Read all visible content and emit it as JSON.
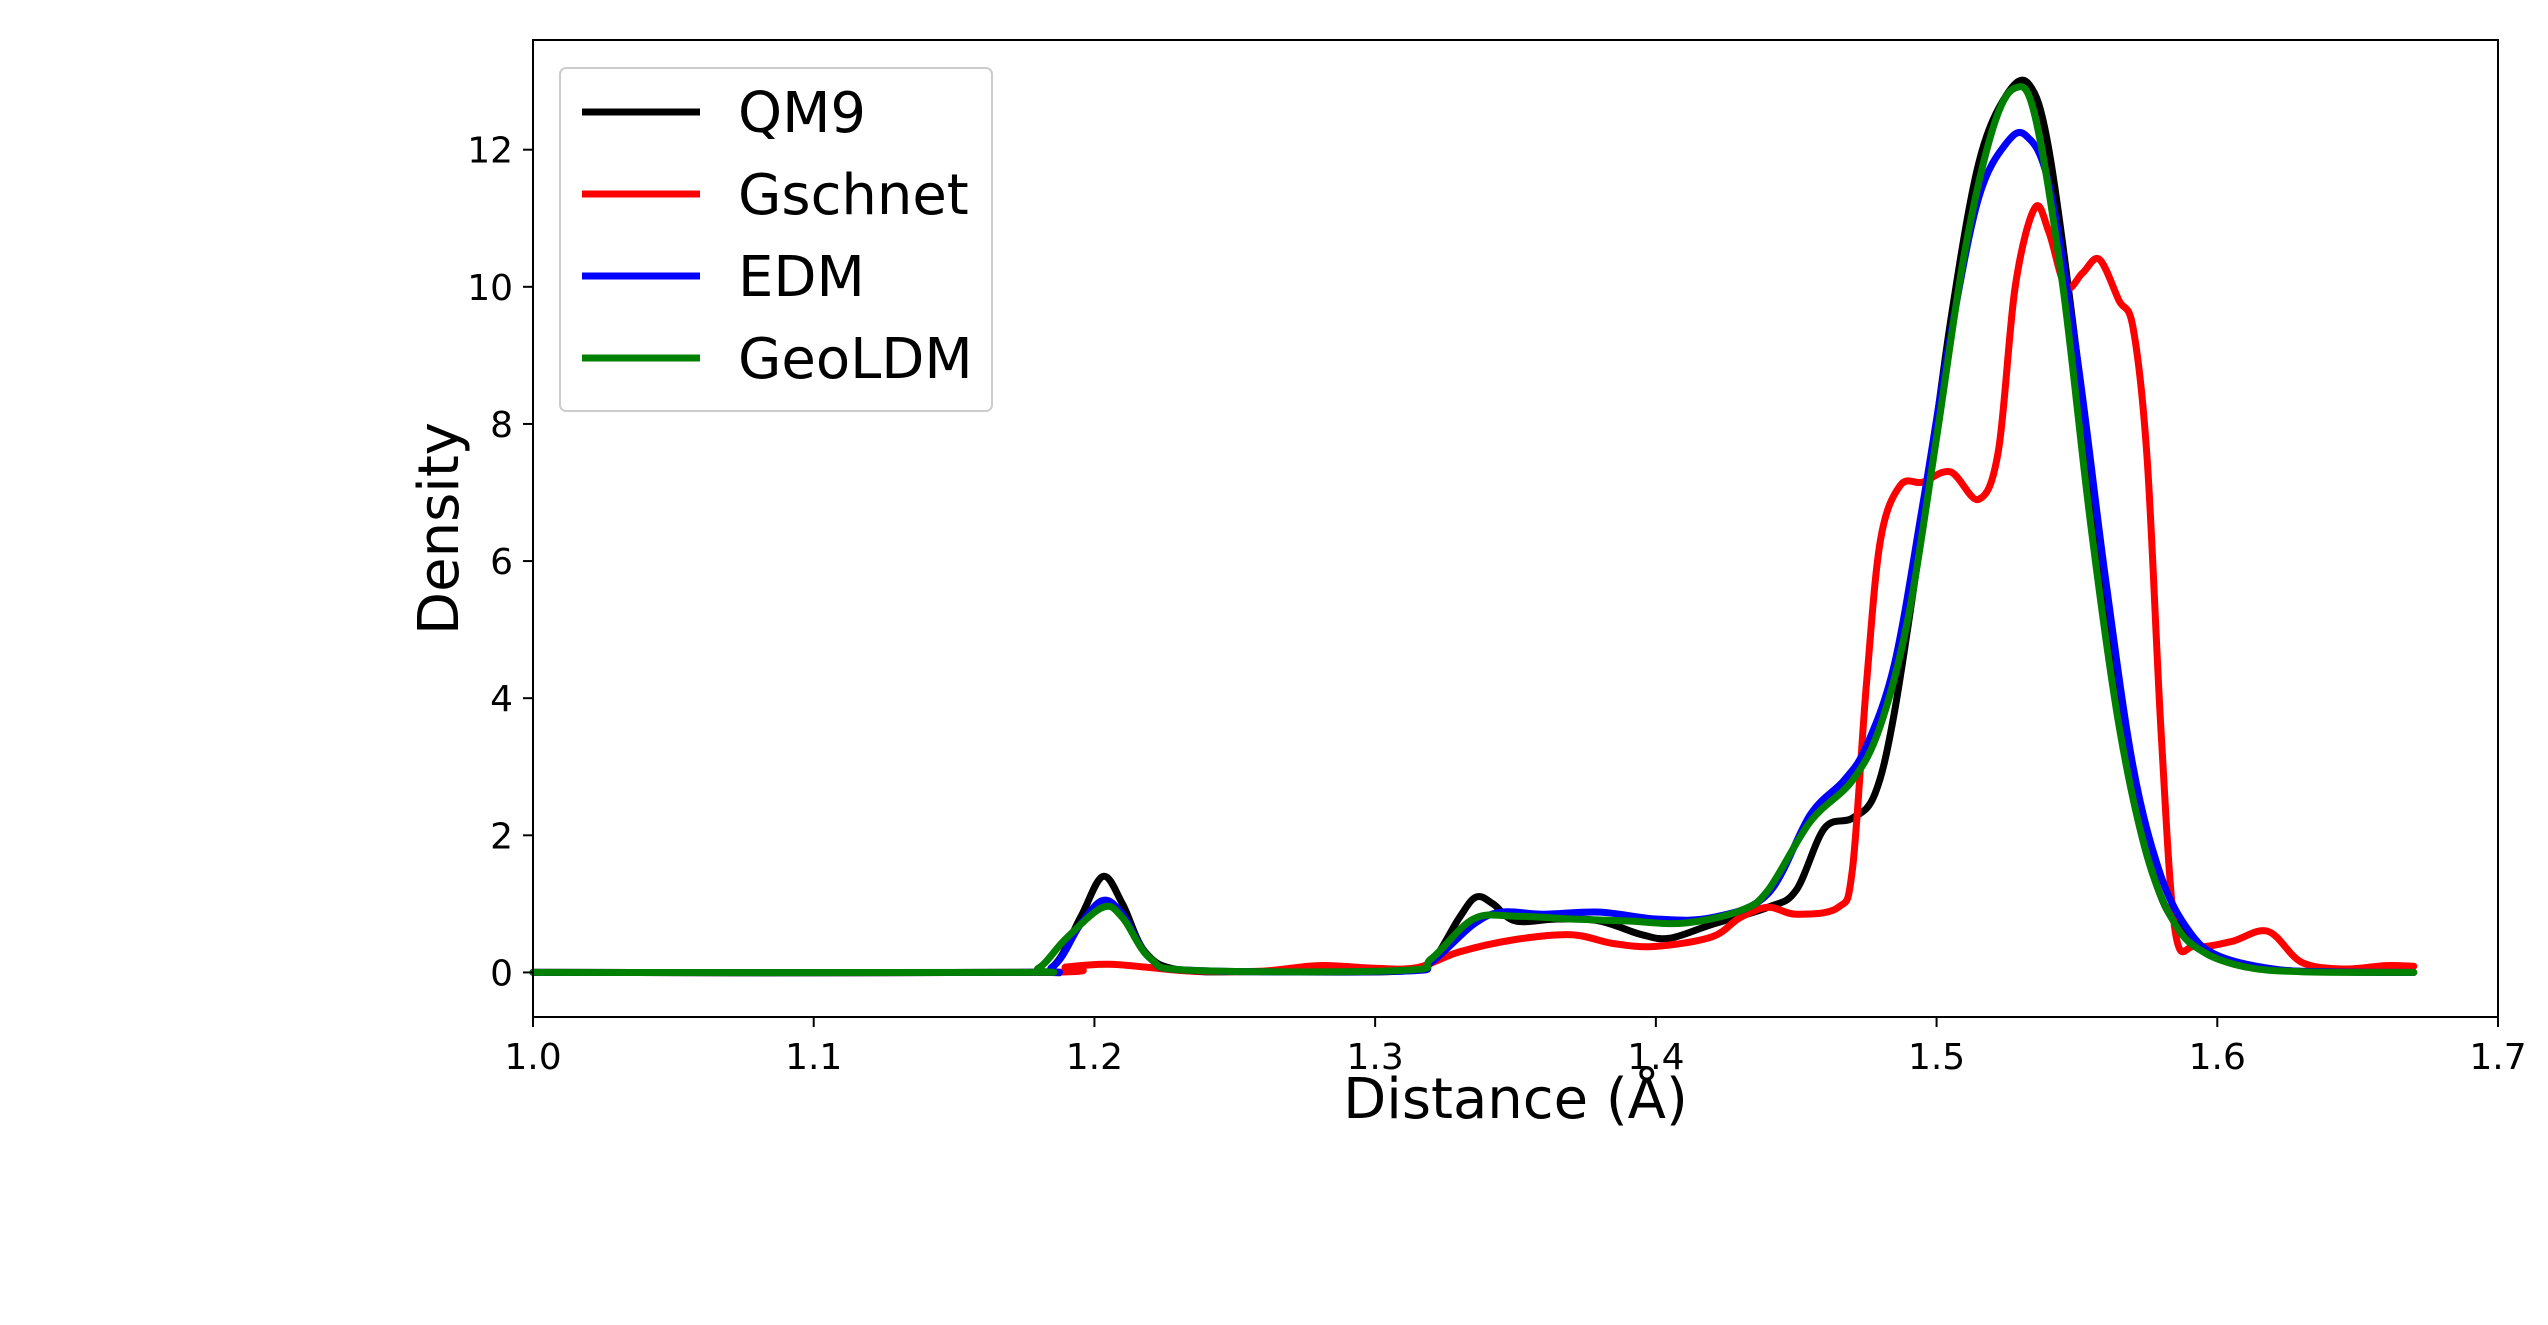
{
  "chart_data": {
    "type": "line",
    "title": "",
    "xlabel": "Distance (Å)",
    "ylabel": "Density",
    "xlim": [
      1.0,
      1.7
    ],
    "ylim": [
      -0.65,
      13.6
    ],
    "xticks": [
      "1.0",
      "1.1",
      "1.2",
      "1.3",
      "1.4",
      "1.5",
      "1.6",
      "1.7"
    ],
    "xtick_values": [
      1.0,
      1.1,
      1.2,
      1.3,
      1.4,
      1.5,
      1.6,
      1.7
    ],
    "yticks": [
      "0",
      "2",
      "4",
      "6",
      "8",
      "10",
      "12"
    ],
    "ytick_values": [
      0,
      2,
      4,
      6,
      8,
      10,
      12
    ],
    "grid": false,
    "legend_position": "top-left",
    "series": [
      {
        "name": "QM9",
        "color": "#000000",
        "points": [
          [
            1.0,
            0
          ],
          [
            1.17,
            0
          ],
          [
            1.185,
            0.08
          ],
          [
            1.195,
            0.8
          ],
          [
            1.203,
            1.4
          ],
          [
            1.21,
            1.0
          ],
          [
            1.218,
            0.3
          ],
          [
            1.23,
            0.04
          ],
          [
            1.26,
            0.01
          ],
          [
            1.31,
            0.02
          ],
          [
            1.32,
            0.15
          ],
          [
            1.33,
            0.8
          ],
          [
            1.336,
            1.1
          ],
          [
            1.342,
            1.0
          ],
          [
            1.35,
            0.75
          ],
          [
            1.365,
            0.78
          ],
          [
            1.38,
            0.75
          ],
          [
            1.395,
            0.55
          ],
          [
            1.405,
            0.5
          ],
          [
            1.42,
            0.7
          ],
          [
            1.44,
            0.95
          ],
          [
            1.45,
            1.2
          ],
          [
            1.46,
            2.1
          ],
          [
            1.47,
            2.25
          ],
          [
            1.478,
            2.6
          ],
          [
            1.485,
            3.8
          ],
          [
            1.495,
            6.5
          ],
          [
            1.505,
            9.5
          ],
          [
            1.515,
            11.8
          ],
          [
            1.525,
            12.8
          ],
          [
            1.533,
            12.95
          ],
          [
            1.54,
            12.0
          ],
          [
            1.55,
            9.0
          ],
          [
            1.56,
            5.5
          ],
          [
            1.57,
            2.6
          ],
          [
            1.58,
            1.1
          ],
          [
            1.59,
            0.5
          ],
          [
            1.6,
            0.2
          ],
          [
            1.62,
            0.04
          ],
          [
            1.64,
            0.01
          ],
          [
            1.67,
            0
          ]
        ]
      },
      {
        "name": "Gschnet",
        "color": "#ff0000",
        "points": [
          [
            1.0,
            0
          ],
          [
            1.18,
            0
          ],
          [
            1.19,
            0.08
          ],
          [
            1.205,
            0.12
          ],
          [
            1.22,
            0.07
          ],
          [
            1.235,
            0.02
          ],
          [
            1.26,
            0.02
          ],
          [
            1.28,
            0.1
          ],
          [
            1.3,
            0.06
          ],
          [
            1.315,
            0.07
          ],
          [
            1.33,
            0.3
          ],
          [
            1.35,
            0.48
          ],
          [
            1.37,
            0.55
          ],
          [
            1.385,
            0.42
          ],
          [
            1.4,
            0.38
          ],
          [
            1.42,
            0.52
          ],
          [
            1.43,
            0.8
          ],
          [
            1.44,
            0.95
          ],
          [
            1.45,
            0.85
          ],
          [
            1.465,
            0.95
          ],
          [
            1.47,
            1.5
          ],
          [
            1.475,
            4.2
          ],
          [
            1.48,
            6.3
          ],
          [
            1.487,
            7.1
          ],
          [
            1.495,
            7.15
          ],
          [
            1.505,
            7.3
          ],
          [
            1.515,
            6.9
          ],
          [
            1.522,
            7.6
          ],
          [
            1.528,
            10.0
          ],
          [
            1.535,
            11.15
          ],
          [
            1.54,
            10.8
          ],
          [
            1.546,
            10.0
          ],
          [
            1.552,
            10.2
          ],
          [
            1.558,
            10.4
          ],
          [
            1.565,
            9.8
          ],
          [
            1.57,
            9.4
          ],
          [
            1.575,
            7.5
          ],
          [
            1.58,
            3.5
          ],
          [
            1.585,
            0.6
          ],
          [
            1.592,
            0.38
          ],
          [
            1.605,
            0.45
          ],
          [
            1.618,
            0.6
          ],
          [
            1.63,
            0.15
          ],
          [
            1.645,
            0.05
          ],
          [
            1.66,
            0.1
          ],
          [
            1.67,
            0.09
          ]
        ]
      },
      {
        "name": "EDM",
        "color": "#0000ff",
        "points": [
          [
            1.0,
            0
          ],
          [
            1.17,
            0
          ],
          [
            1.185,
            0.08
          ],
          [
            1.195,
            0.7
          ],
          [
            1.203,
            1.05
          ],
          [
            1.21,
            0.85
          ],
          [
            1.22,
            0.2
          ],
          [
            1.235,
            0.03
          ],
          [
            1.31,
            0.02
          ],
          [
            1.32,
            0.15
          ],
          [
            1.335,
            0.7
          ],
          [
            1.345,
            0.88
          ],
          [
            1.36,
            0.85
          ],
          [
            1.38,
            0.88
          ],
          [
            1.4,
            0.78
          ],
          [
            1.42,
            0.8
          ],
          [
            1.44,
            1.15
          ],
          [
            1.455,
            2.3
          ],
          [
            1.467,
            2.8
          ],
          [
            1.475,
            3.3
          ],
          [
            1.485,
            4.5
          ],
          [
            1.495,
            6.8
          ],
          [
            1.505,
            9.3
          ],
          [
            1.515,
            11.3
          ],
          [
            1.525,
            12.1
          ],
          [
            1.532,
            12.2
          ],
          [
            1.54,
            11.5
          ],
          [
            1.55,
            9.0
          ],
          [
            1.56,
            5.8
          ],
          [
            1.57,
            3.0
          ],
          [
            1.58,
            1.4
          ],
          [
            1.59,
            0.6
          ],
          [
            1.6,
            0.25
          ],
          [
            1.62,
            0.05
          ],
          [
            1.64,
            0.01
          ],
          [
            1.67,
            0
          ]
        ]
      },
      {
        "name": "GeoLDM",
        "color": "#008000",
        "points": [
          [
            1.0,
            0
          ],
          [
            1.17,
            0
          ],
          [
            1.18,
            0.06
          ],
          [
            1.19,
            0.5
          ],
          [
            1.203,
            0.95
          ],
          [
            1.21,
            0.8
          ],
          [
            1.22,
            0.2
          ],
          [
            1.235,
            0.03
          ],
          [
            1.31,
            0.03
          ],
          [
            1.32,
            0.2
          ],
          [
            1.335,
            0.78
          ],
          [
            1.35,
            0.82
          ],
          [
            1.37,
            0.78
          ],
          [
            1.39,
            0.75
          ],
          [
            1.41,
            0.72
          ],
          [
            1.43,
            0.9
          ],
          [
            1.44,
            1.2
          ],
          [
            1.455,
            2.2
          ],
          [
            1.47,
            2.8
          ],
          [
            1.48,
            3.6
          ],
          [
            1.49,
            5.2
          ],
          [
            1.5,
            7.8
          ],
          [
            1.51,
            10.5
          ],
          [
            1.52,
            12.3
          ],
          [
            1.528,
            12.9
          ],
          [
            1.535,
            12.5
          ],
          [
            1.545,
            10.0
          ],
          [
            1.555,
            6.5
          ],
          [
            1.565,
            3.6
          ],
          [
            1.575,
            1.7
          ],
          [
            1.585,
            0.7
          ],
          [
            1.595,
            0.3
          ],
          [
            1.61,
            0.08
          ],
          [
            1.63,
            0.01
          ],
          [
            1.67,
            0
          ]
        ]
      }
    ]
  }
}
